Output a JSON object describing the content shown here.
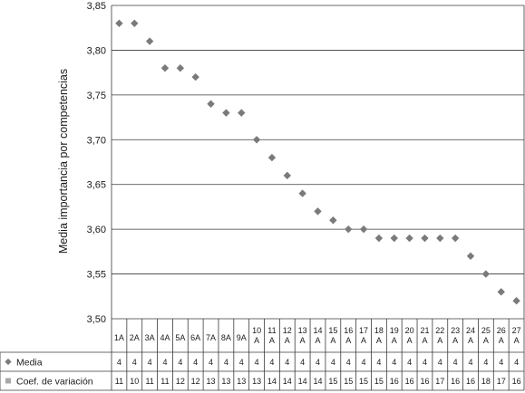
{
  "chart_data": {
    "type": "scatter",
    "title": "",
    "xlabel": "",
    "ylabel": "Media importancia por competencias",
    "ylim": [
      3.5,
      3.85
    ],
    "yticks": [
      "3,85",
      "3,80",
      "3,75",
      "3,70",
      "3,65",
      "3,60",
      "3,55",
      "3,50"
    ],
    "grid": true,
    "categories": [
      [
        "1A"
      ],
      [
        "2A"
      ],
      [
        "3A"
      ],
      [
        "4A"
      ],
      [
        "5A"
      ],
      [
        "6A"
      ],
      [
        "7A"
      ],
      [
        "8A"
      ],
      [
        "9A"
      ],
      [
        "10",
        "A"
      ],
      [
        "11",
        "A"
      ],
      [
        "12",
        "A"
      ],
      [
        "13",
        "A"
      ],
      [
        "14",
        "A"
      ],
      [
        "15",
        "A"
      ],
      [
        "16",
        "A"
      ],
      [
        "17",
        "A"
      ],
      [
        "18",
        "A"
      ],
      [
        "19",
        "A"
      ],
      [
        "20",
        "A"
      ],
      [
        "21",
        "A"
      ],
      [
        "22",
        "A"
      ],
      [
        "23",
        "A"
      ],
      [
        "24",
        "A"
      ],
      [
        "25",
        "A"
      ],
      [
        "26",
        "A"
      ],
      [
        "27",
        "A"
      ]
    ],
    "series": [
      {
        "name": "Media",
        "marker": "diamond",
        "color": "#7a7a7a",
        "values": [
          3.83,
          3.83,
          3.81,
          3.78,
          3.78,
          3.77,
          3.74,
          3.73,
          3.73,
          3.7,
          3.68,
          3.66,
          3.64,
          3.62,
          3.61,
          3.6,
          3.6,
          3.59,
          3.59,
          3.59,
          3.59,
          3.59,
          3.59,
          3.57,
          3.55,
          3.53,
          3.52
        ],
        "table_row": [
          "4",
          "4",
          "4",
          "4",
          "4",
          "4",
          "4",
          "4",
          "4",
          "4",
          "4",
          "4",
          "4",
          "4",
          "4",
          "4",
          "4",
          "4",
          "4",
          "4",
          "4",
          "4",
          "4",
          "4",
          "4",
          "4",
          "4"
        ]
      },
      {
        "name": "Coef. de variación",
        "marker": "square",
        "color": "#a8a8a8",
        "table_row": [
          "11",
          "10",
          "11",
          "11",
          "12",
          "12",
          "13",
          "13",
          "13",
          "13",
          "14",
          "14",
          "14",
          "14",
          "15",
          "15",
          "15",
          "15",
          "16",
          "16",
          "16",
          "17",
          "16",
          "16",
          "18",
          "17",
          "16"
        ]
      }
    ],
    "legend": "data-table-left"
  }
}
